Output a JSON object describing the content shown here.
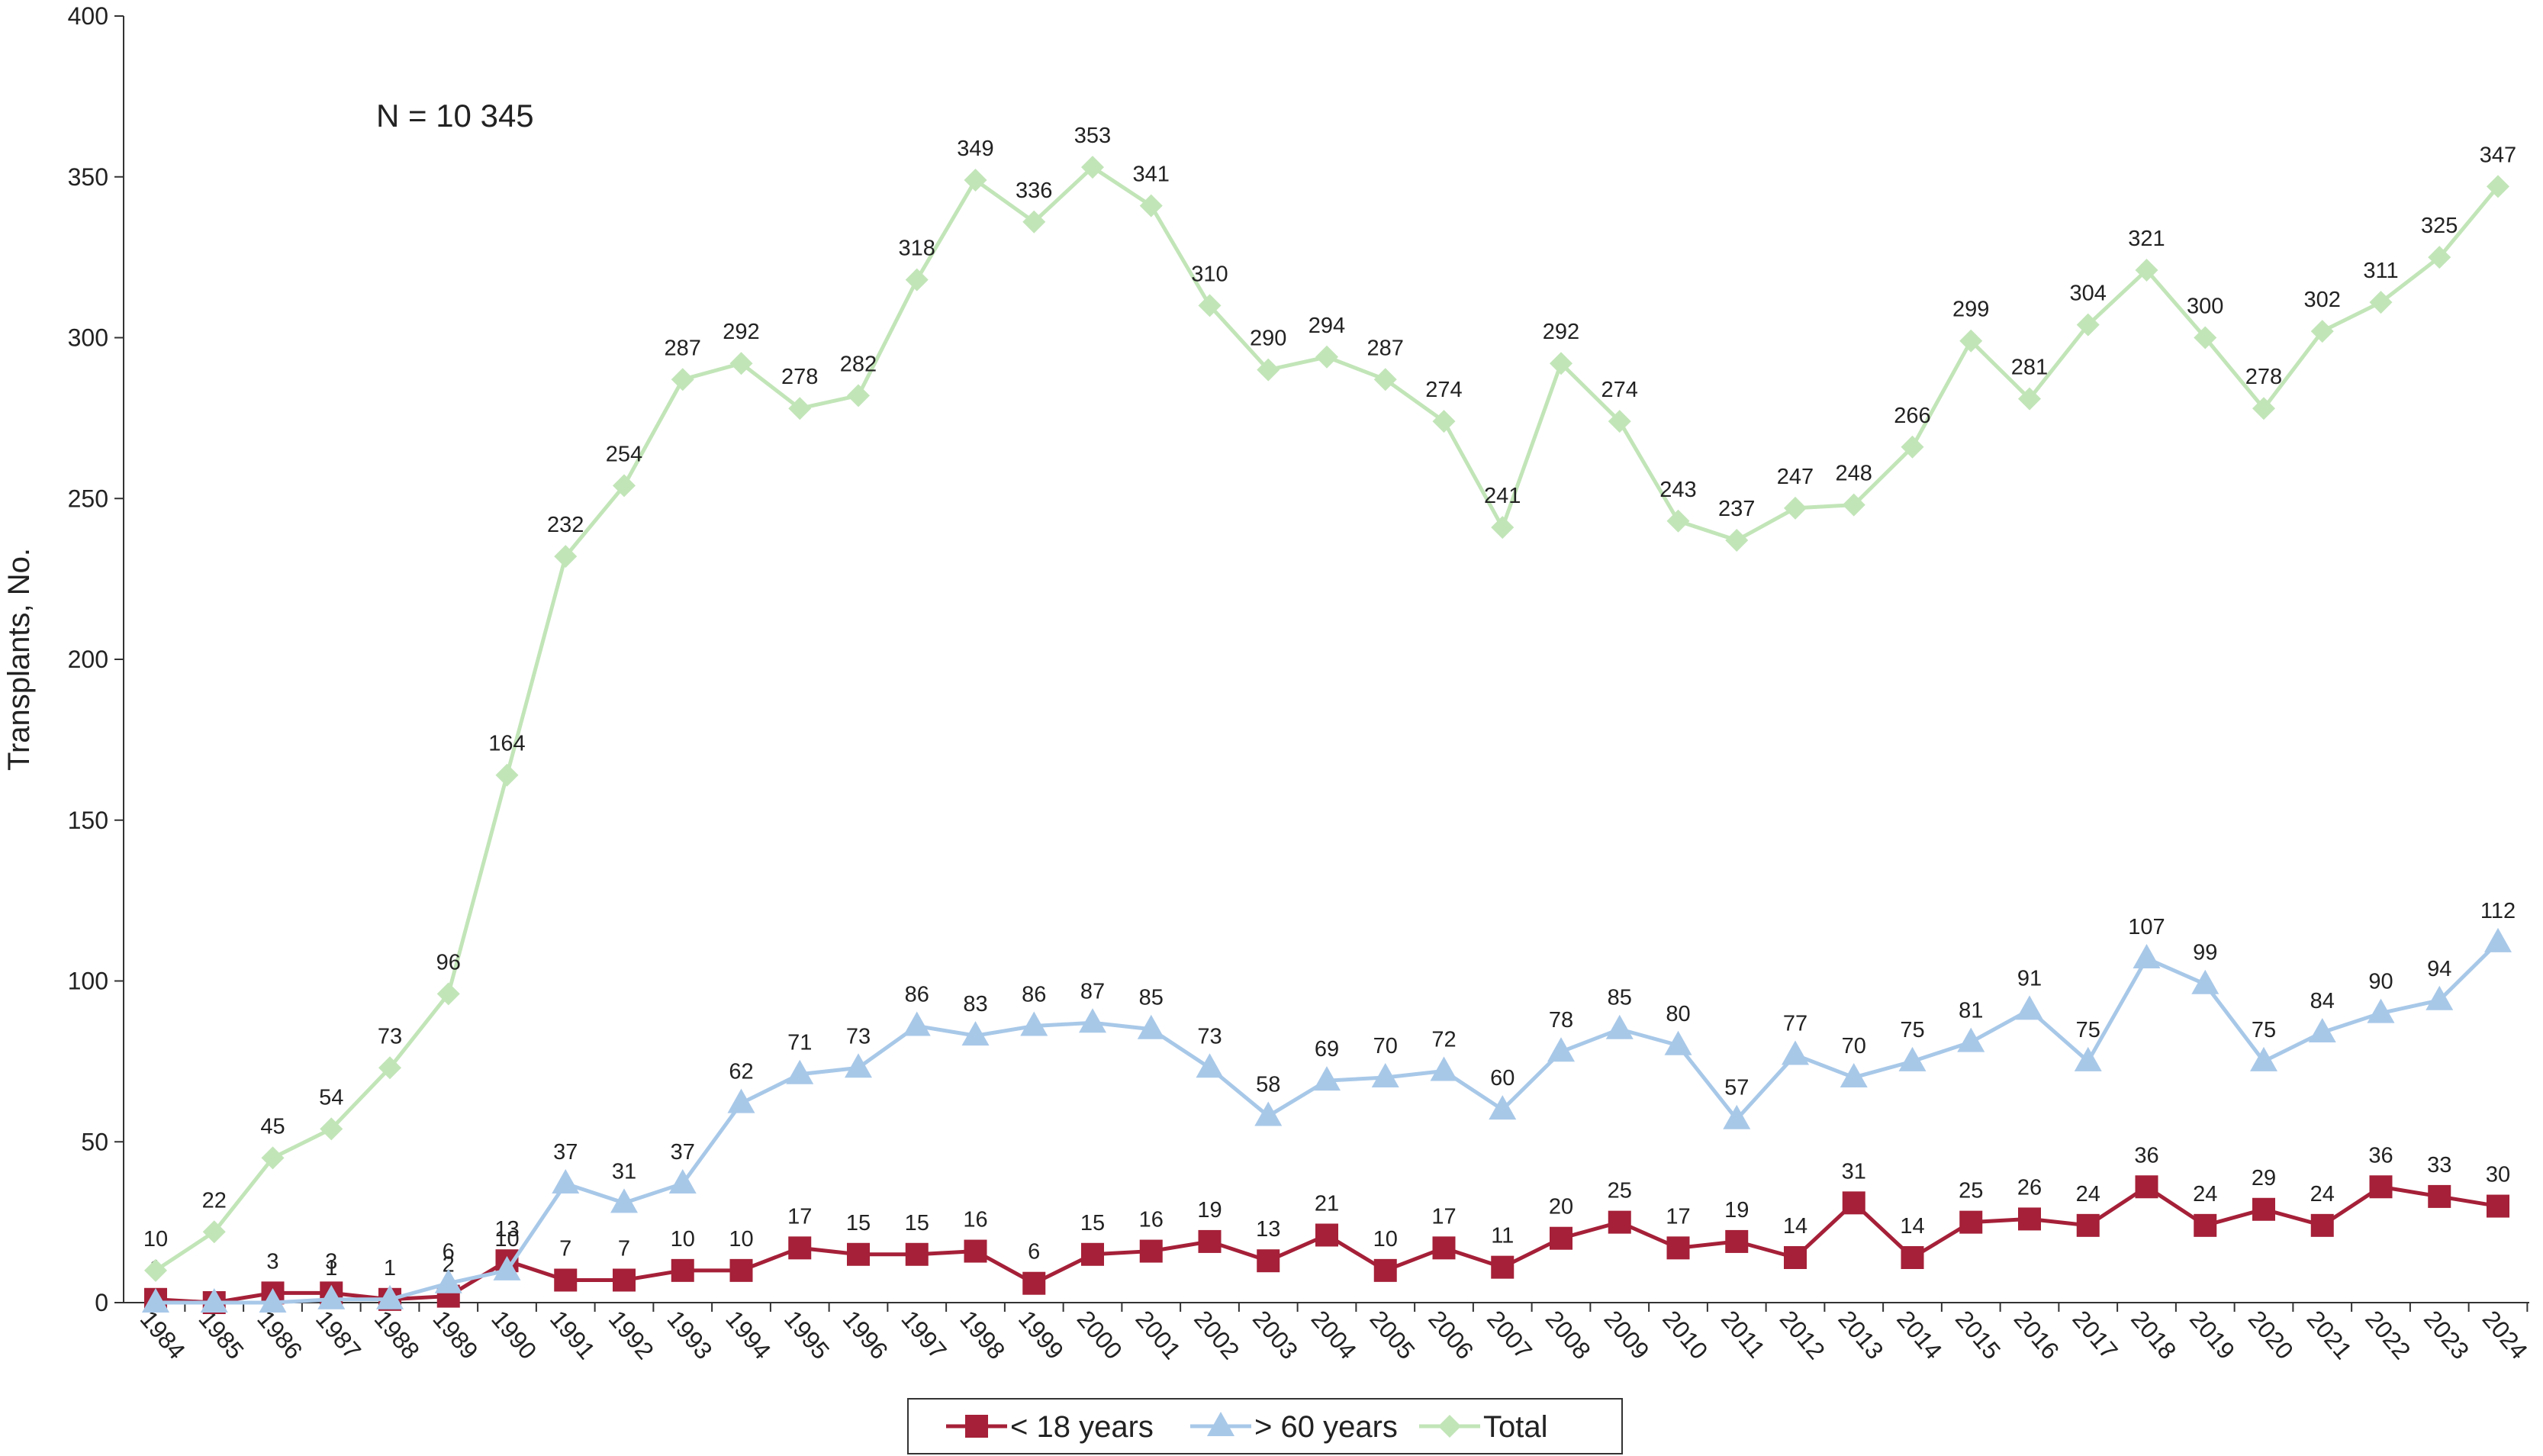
{
  "chart_data": {
    "type": "line",
    "ylabel": "Transplants, No.",
    "annotation": "N = 10 345",
    "categories": [
      "1984",
      "1985",
      "1986",
      "1987",
      "1988",
      "1989",
      "1990",
      "1991",
      "1992",
      "1993",
      "1994",
      "1995",
      "1996",
      "1997",
      "1998",
      "1999",
      "2000",
      "2001",
      "2002",
      "2003",
      "2004",
      "2005",
      "2006",
      "2007",
      "2008",
      "2009",
      "2010",
      "2011",
      "2012",
      "2013",
      "2014",
      "2015",
      "2016",
      "2017",
      "2018",
      "2019",
      "2020",
      "2021",
      "2022",
      "2023",
      "2024"
    ],
    "ylim": [
      0,
      400
    ],
    "yticks": [
      0,
      50,
      100,
      150,
      200,
      250,
      300,
      350,
      400
    ],
    "grid": false,
    "legend": "bottom",
    "series": [
      {
        "name": "< 18 years",
        "color": "#a52038",
        "marker": "square",
        "values": [
          1,
          0,
          3,
          3,
          1,
          2,
          13,
          7,
          7,
          10,
          10,
          17,
          15,
          15,
          16,
          6,
          15,
          16,
          19,
          13,
          21,
          10,
          17,
          11,
          20,
          25,
          17,
          19,
          14,
          31,
          14,
          25,
          26,
          24,
          36,
          24,
          29,
          24,
          36,
          33,
          30
        ],
        "value_labels": [
          "1",
          null,
          "3",
          "3",
          "1",
          "2",
          "13",
          "7",
          "7",
          "10",
          "10",
          "17",
          "15",
          "15",
          "16",
          "6",
          "15",
          "16",
          "19",
          "13",
          "21",
          "10",
          "17",
          "11",
          "20",
          "25",
          "17",
          "19",
          "14",
          "31",
          "14",
          "25",
          "26",
          "24",
          "36",
          "24",
          "29",
          "24",
          "36",
          "33",
          "30"
        ]
      },
      {
        "name": "> 60 years",
        "color": "#a8c8e8",
        "marker": "triangle",
        "values": [
          0,
          0,
          0,
          1,
          1,
          6,
          10,
          37,
          31,
          37,
          62,
          71,
          73,
          86,
          83,
          86,
          87,
          85,
          73,
          58,
          69,
          70,
          72,
          60,
          78,
          85,
          80,
          57,
          77,
          70,
          75,
          81,
          91,
          75,
          107,
          99,
          75,
          84,
          90,
          94,
          112
        ],
        "value_labels": [
          null,
          null,
          null,
          "1",
          null,
          "6",
          "10",
          "37",
          "31",
          "37",
          "62",
          "71",
          "73",
          "86",
          "83",
          "86",
          "87",
          "85",
          "73",
          "58",
          "69",
          "70",
          "72",
          "60",
          "78",
          "85",
          "80",
          "57",
          "77",
          "70",
          "75",
          "81",
          "91",
          "75",
          "107",
          "99",
          "75",
          "84",
          "90",
          "94",
          "112"
        ]
      },
      {
        "name": "Total",
        "color": "#c2e5b8",
        "marker": "diamond",
        "values": [
          10,
          22,
          45,
          54,
          73,
          96,
          164,
          232,
          254,
          287,
          292,
          278,
          282,
          318,
          349,
          336,
          353,
          341,
          310,
          290,
          294,
          287,
          274,
          241,
          292,
          274,
          243,
          237,
          247,
          248,
          266,
          299,
          281,
          304,
          321,
          300,
          278,
          302,
          311,
          325,
          347
        ]
      }
    ]
  }
}
